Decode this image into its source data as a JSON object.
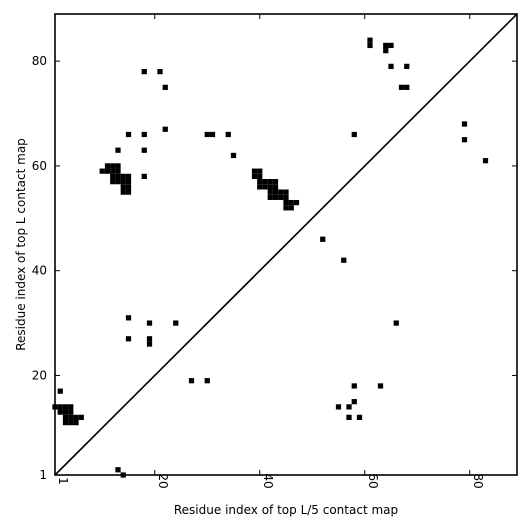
{
  "chart_data": {
    "type": "heatmap",
    "title": "",
    "xlabel": "Residue index of top L/5 contact map",
    "ylabel": "Residue index of top L contact map",
    "xlim": [
      1,
      89
    ],
    "ylim": [
      1,
      89
    ],
    "xticks": [
      1,
      20,
      40,
      60,
      80
    ],
    "yticks": [
      1,
      20,
      40,
      60,
      80
    ],
    "xtick_labels": [
      "1",
      "20",
      "40",
      "60",
      "80"
    ],
    "ytick_labels": [
      "1",
      "20",
      "40",
      "60",
      "80"
    ],
    "diagonal": true,
    "cell_color": "#000000",
    "upper_triangle_contacts": [
      [
        18,
        78
      ],
      [
        21,
        78
      ],
      [
        22,
        75
      ],
      [
        61,
        84
      ],
      [
        61,
        83
      ],
      [
        64,
        83
      ],
      [
        65,
        83
      ],
      [
        64,
        82
      ],
      [
        65,
        79
      ],
      [
        68,
        79
      ],
      [
        67,
        75
      ],
      [
        68,
        75
      ],
      [
        22,
        67
      ],
      [
        15,
        66
      ],
      [
        18,
        66
      ],
      [
        30,
        66
      ],
      [
        31,
        66
      ],
      [
        34,
        66
      ],
      [
        58,
        66
      ],
      [
        79,
        68
      ],
      [
        79,
        65
      ],
      [
        13,
        63
      ],
      [
        18,
        63
      ],
      [
        35,
        62
      ],
      [
        83,
        61
      ],
      [
        11,
        60
      ],
      [
        12,
        60
      ],
      [
        13,
        60
      ],
      [
        10,
        59
      ],
      [
        11,
        59
      ],
      [
        12,
        59
      ],
      [
        13,
        59
      ],
      [
        12,
        58
      ],
      [
        13,
        58
      ],
      [
        14,
        58
      ],
      [
        15,
        58
      ],
      [
        12,
        57
      ],
      [
        13,
        57
      ],
      [
        14,
        57
      ],
      [
        15,
        57
      ],
      [
        14,
        56
      ],
      [
        15,
        56
      ],
      [
        14,
        55
      ],
      [
        15,
        55
      ],
      [
        18,
        58
      ],
      [
        39,
        59
      ],
      [
        40,
        59
      ],
      [
        39,
        58
      ],
      [
        40,
        58
      ],
      [
        40,
        57
      ],
      [
        41,
        57
      ],
      [
        42,
        57
      ],
      [
        43,
        57
      ],
      [
        40,
        56
      ],
      [
        41,
        56
      ],
      [
        42,
        56
      ],
      [
        43,
        56
      ],
      [
        42,
        55
      ],
      [
        43,
        55
      ],
      [
        44,
        55
      ],
      [
        45,
        55
      ],
      [
        42,
        54
      ],
      [
        43,
        54
      ],
      [
        44,
        54
      ],
      [
        45,
        54
      ],
      [
        45,
        53
      ],
      [
        46,
        53
      ],
      [
        47,
        53
      ],
      [
        45,
        52
      ],
      [
        46,
        52
      ],
      [
        52,
        46
      ],
      [
        56,
        42
      ]
    ],
    "lower_triangle_contacts": [
      [
        15,
        31
      ],
      [
        19,
        30
      ],
      [
        24,
        30
      ],
      [
        66,
        30
      ],
      [
        15,
        27
      ],
      [
        19,
        27
      ],
      [
        19,
        26
      ],
      [
        27,
        19
      ],
      [
        30,
        19
      ],
      [
        2,
        17
      ],
      [
        58,
        18
      ],
      [
        63,
        18
      ],
      [
        58,
        15
      ],
      [
        55,
        14
      ],
      [
        57,
        14
      ],
      [
        1,
        14
      ],
      [
        2,
        14
      ],
      [
        3,
        14
      ],
      [
        4,
        14
      ],
      [
        2,
        13
      ],
      [
        3,
        13
      ],
      [
        4,
        13
      ],
      [
        3,
        12
      ],
      [
        4,
        12
      ],
      [
        5,
        12
      ],
      [
        6,
        12
      ],
      [
        3,
        11
      ],
      [
        4,
        11
      ],
      [
        5,
        11
      ],
      [
        57,
        12
      ],
      [
        59,
        12
      ],
      [
        13,
        2
      ],
      [
        14,
        1
      ]
    ]
  }
}
